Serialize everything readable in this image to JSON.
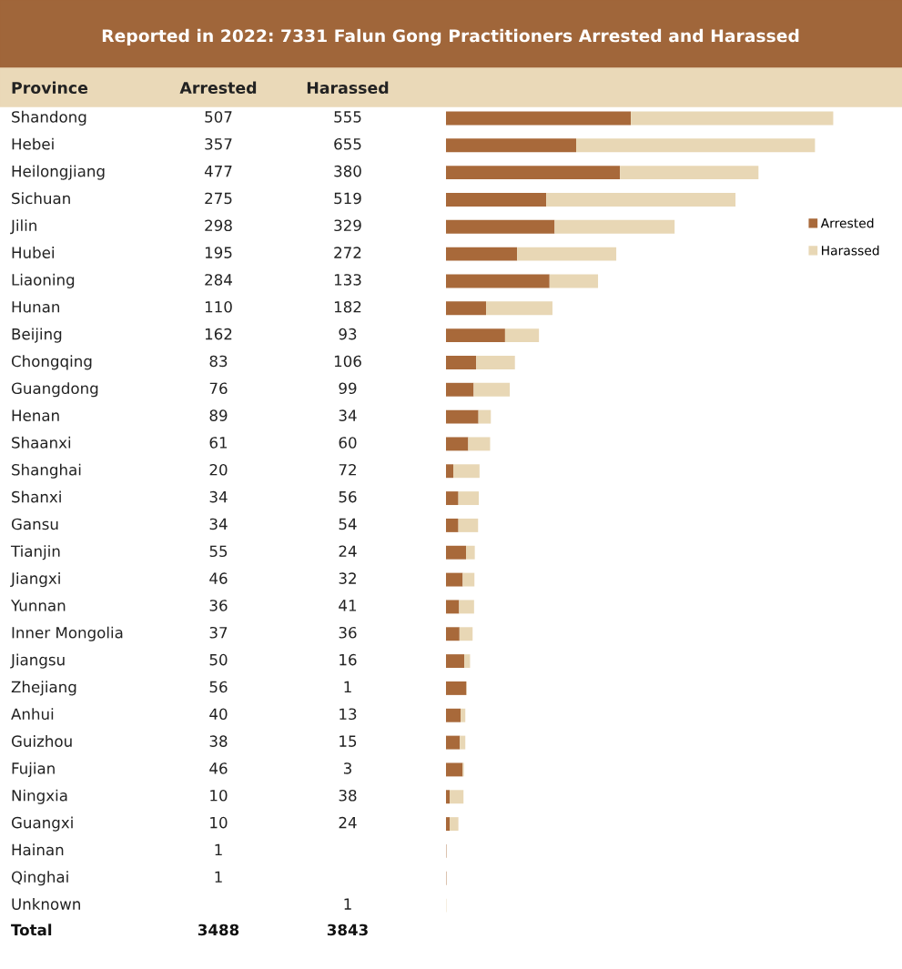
{
  "chart_data": {
    "type": "bar",
    "orientation": "horizontal",
    "stacked": true,
    "title": "Reported in 2022: 7331 Falun Gong Practitioners Arrested and Harassed",
    "ylabel": "Province",
    "categories": [
      "Shandong",
      "Hebei",
      "Heilongjiang",
      "Sichuan",
      "Jilin",
      "Hubei",
      "Liaoning",
      "Hunan",
      "Beijing",
      "Chongqing",
      "Guangdong",
      "Henan",
      "Shaanxi",
      "Shanghai",
      "Shanxi",
      "Gansu",
      "Tianjin",
      "Jiangxi",
      "Yunnan",
      "Inner Mongolia",
      "Jiangsu",
      "Zhejiang",
      "Anhui",
      "Guizhou",
      "Fujian",
      "Ningxia",
      "Guangxi",
      "Hainan",
      "Qinghai",
      "Unknown"
    ],
    "series": [
      {
        "name": "Arrested",
        "color": "#a8693a",
        "values": [
          507,
          357,
          477,
          275,
          298,
          195,
          284,
          110,
          162,
          83,
          76,
          89,
          61,
          20,
          34,
          34,
          55,
          46,
          36,
          37,
          50,
          56,
          40,
          38,
          46,
          10,
          10,
          1,
          1,
          null
        ]
      },
      {
        "name": "Harassed",
        "color": "#e8d7b5",
        "values": [
          555,
          655,
          380,
          519,
          329,
          272,
          133,
          182,
          93,
          106,
          99,
          34,
          60,
          72,
          56,
          54,
          24,
          32,
          41,
          36,
          16,
          1,
          13,
          15,
          3,
          38,
          24,
          null,
          null,
          1
        ]
      }
    ],
    "data_labels": true,
    "tick_labels": false,
    "grid": false,
    "legend": "right",
    "annotations": [
      "Total",
      "3488",
      "3843"
    ]
  }
}
